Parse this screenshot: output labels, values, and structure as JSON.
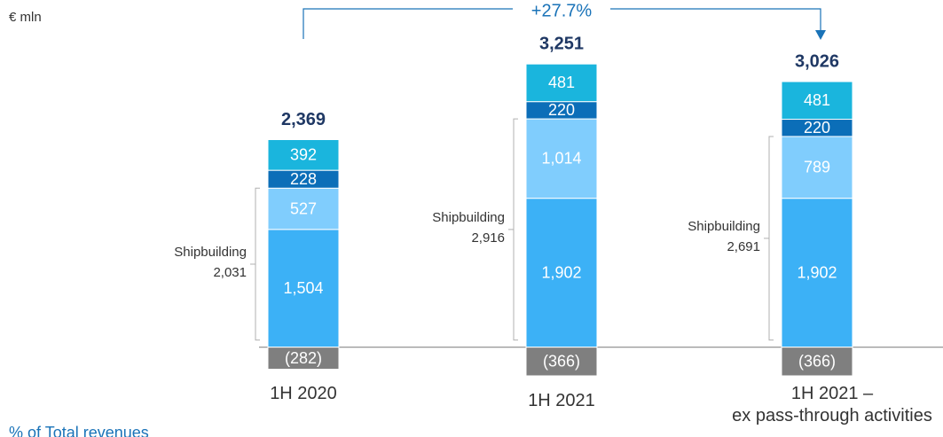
{
  "chart_data": {
    "type": "stacked_bar",
    "unit_label": "€ mln",
    "categories": [
      "1H 2020",
      "1H 2021",
      "1H 2021 –\nex pass-through activities"
    ],
    "series": [
      {
        "color": "#3cb1f6",
        "values": [
          1504,
          1902,
          1902
        ],
        "value_labels": [
          "1,504",
          "1,902",
          "1,902"
        ]
      },
      {
        "color": "#80cdfd",
        "values": [
          527,
          1014,
          789
        ],
        "value_labels": [
          "527",
          "1,014",
          "789"
        ]
      },
      {
        "color": "#0b6eb8",
        "values": [
          228,
          220,
          220
        ],
        "value_labels": [
          "228",
          "220",
          "220"
        ]
      },
      {
        "color": "#1ab5dd",
        "values": [
          392,
          481,
          481
        ],
        "value_labels": [
          "392",
          "481",
          "481"
        ]
      },
      {
        "color": "#7f7f7f",
        "values": [
          -282,
          -366,
          -366
        ],
        "value_labels": [
          "(282)",
          "(366)",
          "(366)"
        ]
      }
    ],
    "totals": {
      "values": [
        2369,
        3251,
        3026
      ],
      "value_labels": [
        "2,369",
        "3,251",
        "3,026"
      ]
    },
    "shipbuilding": {
      "label": "Shipbuilding",
      "values": [
        2031,
        2916,
        2691
      ],
      "value_labels": [
        "2,031",
        "2,916",
        "2,691"
      ]
    },
    "growth": {
      "value": 27.7,
      "label": "+27.7%"
    },
    "footer": "% of Total revenues",
    "ylim": [
      -400,
      3800
    ]
  }
}
